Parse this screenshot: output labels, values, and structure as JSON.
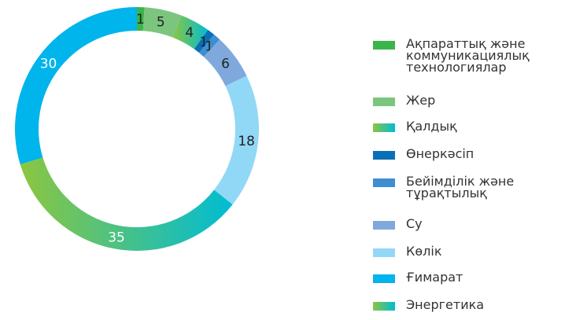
{
  "chart_data": {
    "type": "donut",
    "categories": [
      "Ақпараттық және коммуникациялық технологиялар",
      "Жер",
      "Қалдық",
      "Өнеркәсіп",
      "Бейімділік және тұрақтылық",
      "Су",
      "Көлік",
      "Энергетика",
      "Ғимарат"
    ],
    "values": [
      1,
      5,
      4,
      1,
      1,
      6,
      18,
      35,
      30
    ],
    "colors": [
      "#3bb44a",
      "#7cc57f",
      [
        "#8cc63f",
        "#00bcd4"
      ],
      "#0a6fb6",
      "#3d8fd1",
      "#7fa9dc",
      "#91d8f6",
      [
        "#8cc63f",
        "#00bcd4"
      ],
      "#00b4ec"
    ],
    "legend": true
  }
}
